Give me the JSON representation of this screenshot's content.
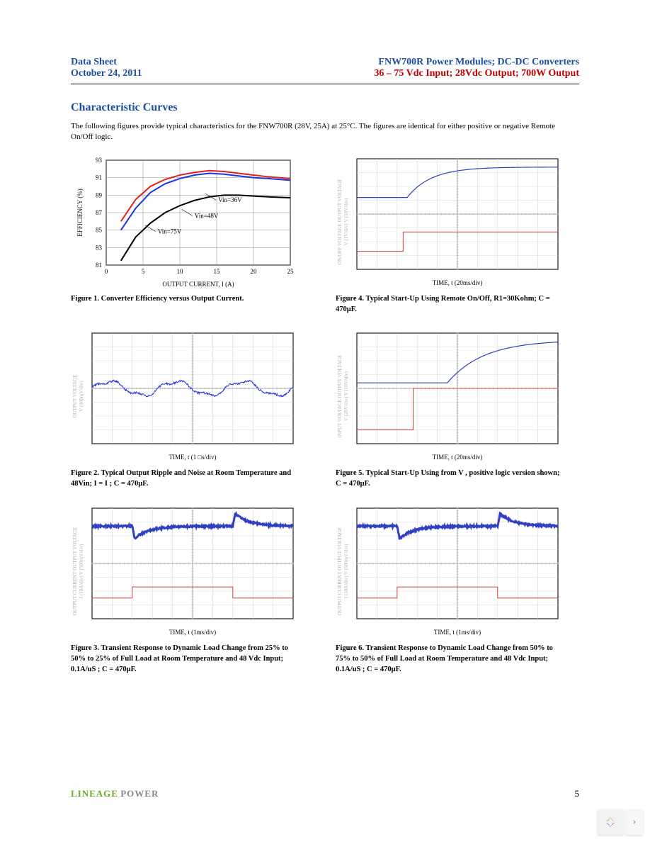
{
  "header": {
    "data_sheet": "Data Sheet",
    "date": "October 24, 2011",
    "title": "FNW700R Power Modules; DC-DC Converters",
    "subtitle": "36 – 75 Vdc Input; 28Vdc Output; 700W Output"
  },
  "section_title": "Characteristic Curves",
  "intro_text": "The following figures provide typical characteristics for the FNW700R (28V, 25A) at 25°C. The figures are identical for either positive or negative Remote On/Off logic.",
  "footer": {
    "brand_left": "LINEAGE",
    "brand_right": "POWER",
    "page": "5"
  },
  "colors": {
    "header_blue": "#1a4fa0",
    "header_red": "#c00000",
    "grid_major": "#444444",
    "grid_minor": "#cccccc",
    "series_red": "#e02020",
    "series_blue": "#2030e0",
    "series_black": "#000000",
    "scope_red": "#d04040",
    "scope_blue": "#3040c0",
    "scope_grid": "#d8d8d8",
    "scope_border": "#303030",
    "axis_grey": "#b0b0b0",
    "brand_green": "#6aaa2a",
    "brand_grey": "#888888"
  },
  "fig1": {
    "type": "line",
    "caption": "Figure 1. Converter Efficiency versus Output Current.",
    "xlabel": "OUTPUT CURRENT, I          (A)",
    "ylabel": "EFFICIENCY (%)",
    "xlim": [
      0,
      25
    ],
    "ylim": [
      81,
      93
    ],
    "xticks": [
      0,
      5,
      10,
      15,
      20,
      25
    ],
    "yticks": [
      81,
      83,
      85,
      87,
      89,
      91,
      93
    ],
    "series": [
      {
        "label": "Vin=36V",
        "color": "#e02020",
        "x": [
          2,
          4,
          6,
          8,
          10,
          12,
          14,
          16,
          18,
          20,
          22,
          25
        ],
        "y": [
          86,
          88.5,
          90,
          90.8,
          91.3,
          91.6,
          91.8,
          91.7,
          91.5,
          91.3,
          91.1,
          90.9
        ],
        "label_xy": [
          15.2,
          88.2
        ]
      },
      {
        "label": "Vin=48V",
        "color": "#2030e0",
        "x": [
          2,
          4,
          6,
          8,
          10,
          12,
          14,
          16,
          18,
          20,
          22,
          25
        ],
        "y": [
          85,
          87.5,
          89.3,
          90.3,
          90.9,
          91.3,
          91.5,
          91.4,
          91.2,
          91.0,
          90.9,
          90.7
        ],
        "label_xy": [
          12,
          86.4
        ]
      },
      {
        "label": "Vin=75V",
        "color": "#000000",
        "x": [
          2,
          4,
          6,
          8,
          10,
          12,
          14,
          16,
          18,
          20,
          22,
          25
        ],
        "y": [
          81.5,
          84.2,
          85.8,
          87,
          87.8,
          88.4,
          88.8,
          89,
          89,
          88.9,
          88.8,
          88.7
        ],
        "label_xy": [
          7,
          84.6
        ]
      }
    ],
    "line_width": 2,
    "background_color": "#ffffff"
  },
  "fig2": {
    "type": "scope_ripple",
    "caption": "Figure 2. Typical Output Ripple and Noise at Room Temperature and 48Vin; I        = I        ; C        = 470μF.",
    "xlabel": "TIME, t (1    □s/div)",
    "ylabel_left": "OUTPUT VOLTAGE\nV   (100mV/div)",
    "grid": {
      "cols": 10,
      "rows": 8
    },
    "trace": {
      "color": "#2030e0",
      "freq_cycles": 3,
      "amp_divs": 1.0,
      "baseline_row": 4,
      "noise": 0.15
    }
  },
  "fig3": {
    "type": "scope_transient",
    "caption": "Figure 3. Transient Response to Dynamic Load Change from 25% to 50% to 25% of Full Load at Room Temperature and 48 Vdc Input; 0.1A/uS ; C        = 470μF.",
    "xlabel": "TIME, t (1ms/div)",
    "ylabel_left": "OUTPUT CURRENT OUTPUT VOLTAGE\nI  (10A/div)      V (500mV/div)",
    "grid": {
      "cols": 10,
      "rows": 8
    },
    "vout": {
      "color": "#3040c0",
      "baseline_row": 1.3,
      "step_at": [
        2,
        7
      ],
      "dip_amp": 0.9,
      "thickness": 3
    },
    "iout": {
      "color": "#d04040",
      "low_row": 6.5,
      "high_row": 5.7,
      "step_at": [
        2,
        7
      ]
    }
  },
  "fig4": {
    "type": "scope_startup",
    "caption": "Figure 4. Typical Start-Up Using Remote On/Off, R1=30Kohm; C        = 470μF.",
    "xlabel": "TIME, t (20ms/div)",
    "ylabel_left": "ON/OFF VOLTAGE  OUTPUT VOLTAGE\nV    (1V/div)      V  (10V/div)",
    "grid": {
      "cols": 10,
      "rows": 8
    },
    "vout": {
      "color": "#3040c0",
      "pre_row": 2.8,
      "post_row": 0.6,
      "step_col": 2.5,
      "rise_cols": 1.2
    },
    "trigger": {
      "color": "#d04040",
      "pre_row": 6.7,
      "post_row": 5.3,
      "step_col": 2.3
    }
  },
  "fig5": {
    "type": "scope_startup",
    "caption": "Figure 5. Typical Start-Up Using from V        , positive logic version shown; C        = 470μF.",
    "xlabel": "TIME, t (20ms/div)",
    "ylabel_left": "INPUT VOLTAGE   OUTPUT VOLTAGE\nV   (20V/div)     V  (10V/div)",
    "grid": {
      "cols": 10,
      "rows": 8
    },
    "vout": {
      "color": "#3040c0",
      "pre_row": 3.6,
      "post_row": 0.5,
      "step_col": 4.5,
      "rise_cols": 1.8
    },
    "trigger": {
      "color": "#d04040",
      "pre_row": 7.0,
      "post_row": 4.0,
      "step_col": 2.8
    }
  },
  "fig6": {
    "type": "scope_transient",
    "caption": "Figure 6. Transient Response to Dynamic Load Change from 50% to 75% to 50% of Full Load at Room Temperature and 48 Vdc Input; 0.1A/uS ; C        = 470μF.",
    "xlabel": "TIME, t (1ms/div)",
    "ylabel_left": "OUTPUT CURRENT OUTPUT VOLTAGE\nI  (10A/div)      V (500mV/div)",
    "grid": {
      "cols": 10,
      "rows": 8
    },
    "vout": {
      "color": "#3040c0",
      "baseline_row": 1.3,
      "step_at": [
        2,
        7
      ],
      "dip_amp": 0.9,
      "thickness": 3
    },
    "iout": {
      "color": "#d04040",
      "low_row": 6.5,
      "high_row": 5.7,
      "step_at": [
        2,
        7
      ]
    }
  }
}
